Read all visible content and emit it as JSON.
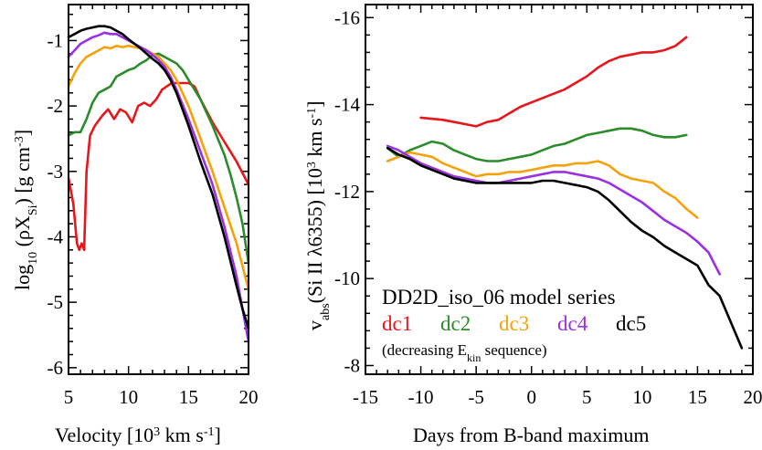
{
  "chart_data": [
    {
      "type": "line",
      "panel": "left",
      "title": "",
      "xlabel": "Velocity [10³ km s⁻¹]",
      "ylabel": "log₁₀ (ρX_Si) [g cm⁻³]",
      "xlim": [
        5,
        20
      ],
      "ylim": [
        -6.1,
        -0.45
      ],
      "xticks": [
        5,
        10,
        15,
        20
      ],
      "yticks": [
        -1,
        -2,
        -3,
        -4,
        -5,
        -6
      ],
      "xticklabels": [
        "5",
        "10",
        "15",
        "20"
      ],
      "yticklabels": [
        "-1",
        "-2",
        "-3",
        "-4",
        "-5",
        "-6"
      ],
      "series": [
        {
          "name": "dc1",
          "color": "#e8161b",
          "x": [
            5.0,
            5.4,
            5.7,
            5.9,
            6.1,
            6.3,
            6.5,
            6.8,
            7.2,
            7.8,
            8.3,
            8.8,
            9.3,
            9.8,
            10.3,
            10.8,
            11.3,
            11.8,
            12.3,
            12.8,
            13.2,
            13.6,
            14.0,
            14.5,
            15.0,
            15.5,
            16.0,
            17.0,
            18.0,
            19.0,
            20.0
          ],
          "y": [
            -3.1,
            -3.5,
            -4.1,
            -4.2,
            -4.1,
            -4.2,
            -3.0,
            -2.45,
            -2.3,
            -2.15,
            -2.05,
            -2.2,
            -2.05,
            -2.1,
            -2.25,
            -2.0,
            -1.95,
            -2.0,
            -1.9,
            -1.75,
            -1.7,
            -1.65,
            -1.65,
            -1.65,
            -1.65,
            -1.7,
            -1.9,
            -2.25,
            -2.55,
            -2.85,
            -3.2
          ]
        },
        {
          "name": "dc2",
          "color": "#2a8c2a",
          "x": [
            5.0,
            5.5,
            6.0,
            6.5,
            7.0,
            7.5,
            8.0,
            8.5,
            9.0,
            9.5,
            10.0,
            10.5,
            11.0,
            11.5,
            12.0,
            12.5,
            13.0,
            13.5,
            14.0,
            14.5,
            15.0,
            16.0,
            17.0,
            18.0,
            18.5,
            19.0,
            19.5,
            20.0
          ],
          "y": [
            -2.45,
            -2.4,
            -2.4,
            -2.2,
            -1.95,
            -1.8,
            -1.75,
            -1.7,
            -1.55,
            -1.5,
            -1.45,
            -1.42,
            -1.35,
            -1.3,
            -1.22,
            -1.2,
            -1.25,
            -1.3,
            -1.35,
            -1.45,
            -1.6,
            -1.9,
            -2.3,
            -2.75,
            -3.05,
            -3.4,
            -3.8,
            -4.4
          ]
        },
        {
          "name": "dc3",
          "color": "#f5a20a",
          "x": [
            5.0,
            5.5,
            6.0,
            6.5,
            7.0,
            7.5,
            8.0,
            8.5,
            9.0,
            9.5,
            10.0,
            10.5,
            11.0,
            11.5,
            12.0,
            12.5,
            13.0,
            13.5,
            14.0,
            15.0,
            16.0,
            17.0,
            18.0,
            19.0,
            20.0
          ],
          "y": [
            -1.7,
            -1.5,
            -1.35,
            -1.25,
            -1.2,
            -1.15,
            -1.1,
            -1.12,
            -1.08,
            -1.1,
            -1.08,
            -1.1,
            -1.12,
            -1.15,
            -1.2,
            -1.25,
            -1.35,
            -1.45,
            -1.6,
            -2.0,
            -2.5,
            -3.0,
            -3.55,
            -4.1,
            -4.8
          ]
        },
        {
          "name": "dc4",
          "color": "#9b30e0",
          "x": [
            5.0,
            5.5,
            6.0,
            6.5,
            7.0,
            7.5,
            8.0,
            8.5,
            9.0,
            9.5,
            10.0,
            10.5,
            11.0,
            11.5,
            12.0,
            12.5,
            13.0,
            13.5,
            14.0,
            15.0,
            16.0,
            17.0,
            18.0,
            19.0,
            19.5,
            20.0
          ],
          "y": [
            -1.25,
            -1.15,
            -1.05,
            -1.0,
            -0.95,
            -0.92,
            -0.88,
            -0.9,
            -0.9,
            -0.95,
            -1.0,
            -1.05,
            -1.1,
            -1.15,
            -1.22,
            -1.3,
            -1.4,
            -1.55,
            -1.75,
            -2.2,
            -2.7,
            -3.2,
            -3.85,
            -4.6,
            -5.1,
            -5.6
          ]
        },
        {
          "name": "dc5",
          "color": "#000000",
          "x": [
            5.0,
            5.5,
            6.0,
            6.5,
            7.0,
            7.5,
            8.0,
            8.5,
            9.0,
            9.5,
            10.0,
            10.5,
            11.0,
            11.5,
            12.0,
            12.5,
            13.0,
            13.5,
            14.0,
            15.0,
            16.0,
            17.0,
            18.0,
            19.0,
            19.5,
            20.0
          ],
          "y": [
            -0.95,
            -0.9,
            -0.85,
            -0.82,
            -0.8,
            -0.78,
            -0.78,
            -0.8,
            -0.85,
            -0.9,
            -0.98,
            -1.05,
            -1.12,
            -1.2,
            -1.28,
            -1.35,
            -1.45,
            -1.6,
            -1.8,
            -2.3,
            -2.85,
            -3.35,
            -4.0,
            -4.75,
            -5.1,
            -5.4
          ]
        }
      ]
    },
    {
      "type": "line",
      "panel": "right",
      "title": "",
      "xlabel": "Days from B-band maximum",
      "ylabel": "v_abs(Si II λ6355) [10³ km s⁻¹]",
      "xlim": [
        -15,
        20
      ],
      "ylim": [
        -7.8,
        -16.3
      ],
      "yaxis_inverted": true,
      "xticks": [
        -15,
        -10,
        -5,
        0,
        5,
        10,
        15,
        20
      ],
      "yticks": [
        -8,
        -10,
        -12,
        -14,
        -16
      ],
      "xticklabels": [
        "-15",
        "-10",
        "-5",
        "0",
        "5",
        "10",
        "15",
        "20"
      ],
      "yticklabels": [
        "-8",
        "-10",
        "-12",
        "-14",
        "-16"
      ],
      "series": [
        {
          "name": "dc1",
          "color": "#e8161b",
          "x": [
            -10,
            -8,
            -6,
            -5,
            -4,
            -3,
            -2,
            -1,
            0,
            1,
            2,
            3,
            4,
            5,
            6,
            7,
            8,
            9,
            10,
            11,
            12,
            13,
            14
          ],
          "y": [
            -13.7,
            -13.65,
            -13.55,
            -13.5,
            -13.6,
            -13.65,
            -13.8,
            -13.95,
            -14.05,
            -14.15,
            -14.25,
            -14.35,
            -14.5,
            -14.65,
            -14.85,
            -15.0,
            -15.1,
            -15.15,
            -15.2,
            -15.2,
            -15.25,
            -15.35,
            -15.55
          ]
        },
        {
          "name": "dc2",
          "color": "#2a8c2a",
          "x": [
            -13,
            -12,
            -11,
            -10,
            -9,
            -8,
            -7,
            -6,
            -5,
            -4,
            -3,
            -2,
            -1,
            0,
            1,
            2,
            3,
            4,
            5,
            6,
            7,
            8,
            9,
            10,
            11,
            12,
            13,
            14
          ],
          "y": [
            -13.0,
            -12.8,
            -12.95,
            -13.05,
            -13.15,
            -13.1,
            -12.95,
            -12.85,
            -12.75,
            -12.7,
            -12.7,
            -12.75,
            -12.8,
            -12.85,
            -12.95,
            -13.05,
            -13.1,
            -13.2,
            -13.3,
            -13.35,
            -13.4,
            -13.45,
            -13.45,
            -13.4,
            -13.3,
            -13.25,
            -13.25,
            -13.3
          ]
        },
        {
          "name": "dc3",
          "color": "#f5a20a",
          "x": [
            -13,
            -12,
            -11,
            -10,
            -9,
            -8,
            -7,
            -6,
            -5,
            -4,
            -3,
            -2,
            -1,
            0,
            1,
            2,
            3,
            4,
            5,
            6,
            7,
            8,
            9,
            10,
            11,
            12,
            13,
            14,
            15
          ],
          "y": [
            -12.7,
            -12.8,
            -12.9,
            -12.85,
            -12.8,
            -12.65,
            -12.55,
            -12.45,
            -12.35,
            -12.4,
            -12.4,
            -12.45,
            -12.45,
            -12.5,
            -12.55,
            -12.6,
            -12.6,
            -12.65,
            -12.65,
            -12.7,
            -12.6,
            -12.4,
            -12.3,
            -12.25,
            -12.2,
            -12.0,
            -11.85,
            -11.6,
            -11.4
          ]
        },
        {
          "name": "dc4",
          "color": "#9b30e0",
          "x": [
            -13,
            -12,
            -11,
            -10,
            -9,
            -8,
            -7,
            -6,
            -5,
            -4,
            -3,
            -2,
            -1,
            0,
            1,
            2,
            3,
            4,
            5,
            6,
            7,
            8,
            9,
            10,
            11,
            12,
            13,
            14,
            15,
            16,
            17
          ],
          "y": [
            -13.05,
            -12.95,
            -12.8,
            -12.65,
            -12.55,
            -12.45,
            -12.35,
            -12.3,
            -12.25,
            -12.2,
            -12.2,
            -12.25,
            -12.3,
            -12.35,
            -12.4,
            -12.45,
            -12.45,
            -12.4,
            -12.35,
            -12.3,
            -12.2,
            -12.05,
            -11.9,
            -11.75,
            -11.55,
            -11.35,
            -11.2,
            -11.05,
            -10.85,
            -10.6,
            -10.1
          ]
        },
        {
          "name": "dc5",
          "color": "#000000",
          "x": [
            -13,
            -12,
            -11,
            -10,
            -9,
            -8,
            -7,
            -6,
            -5,
            -4,
            -3,
            -2,
            -1,
            0,
            1,
            2,
            3,
            4,
            5,
            6,
            7,
            8,
            9,
            10,
            11,
            12,
            13,
            14,
            15,
            16,
            17,
            18,
            19
          ],
          "y": [
            -13.0,
            -12.85,
            -12.75,
            -12.6,
            -12.5,
            -12.4,
            -12.3,
            -12.25,
            -12.2,
            -12.2,
            -12.2,
            -12.2,
            -12.2,
            -12.2,
            -12.25,
            -12.25,
            -12.2,
            -12.15,
            -12.1,
            -12.0,
            -11.8,
            -11.55,
            -11.3,
            -11.1,
            -10.95,
            -10.75,
            -10.6,
            -10.45,
            -10.3,
            -9.85,
            -9.6,
            -9.0,
            -8.4
          ]
        }
      ],
      "legend": {
        "placement": "bottom-left",
        "title": "DD2D_iso_06 model series",
        "items": [
          "dc1",
          "dc2",
          "dc3",
          "dc4",
          "dc5"
        ],
        "note_prefix": "(decreasing E",
        "note_sub": "kin",
        "note_suffix": " sequence)"
      }
    }
  ],
  "labels": {
    "left_xlabel_main": "Velocity   [10",
    "left_xlabel_sup1": "3",
    "left_xlabel_mid": " km s",
    "left_xlabel_sup2": "-1",
    "left_xlabel_end": "]",
    "left_ylabel_main": "log",
    "left_ylabel_sub10": "10",
    "left_ylabel_paren": " (ρX",
    "left_ylabel_subsi": "Si",
    "left_ylabel_end": ")   [g cm",
    "left_ylabel_sup": "-3",
    "left_ylabel_close": "]",
    "right_xlabel": "Days from B-band maximum",
    "right_ylabel_v": "v",
    "right_ylabel_sub": "abs",
    "right_ylabel_mid": "(Si II λ6355)   [10",
    "right_ylabel_sup1": "3",
    "right_ylabel_km": " km s",
    "right_ylabel_sup2": "-1",
    "right_ylabel_close": "]"
  }
}
